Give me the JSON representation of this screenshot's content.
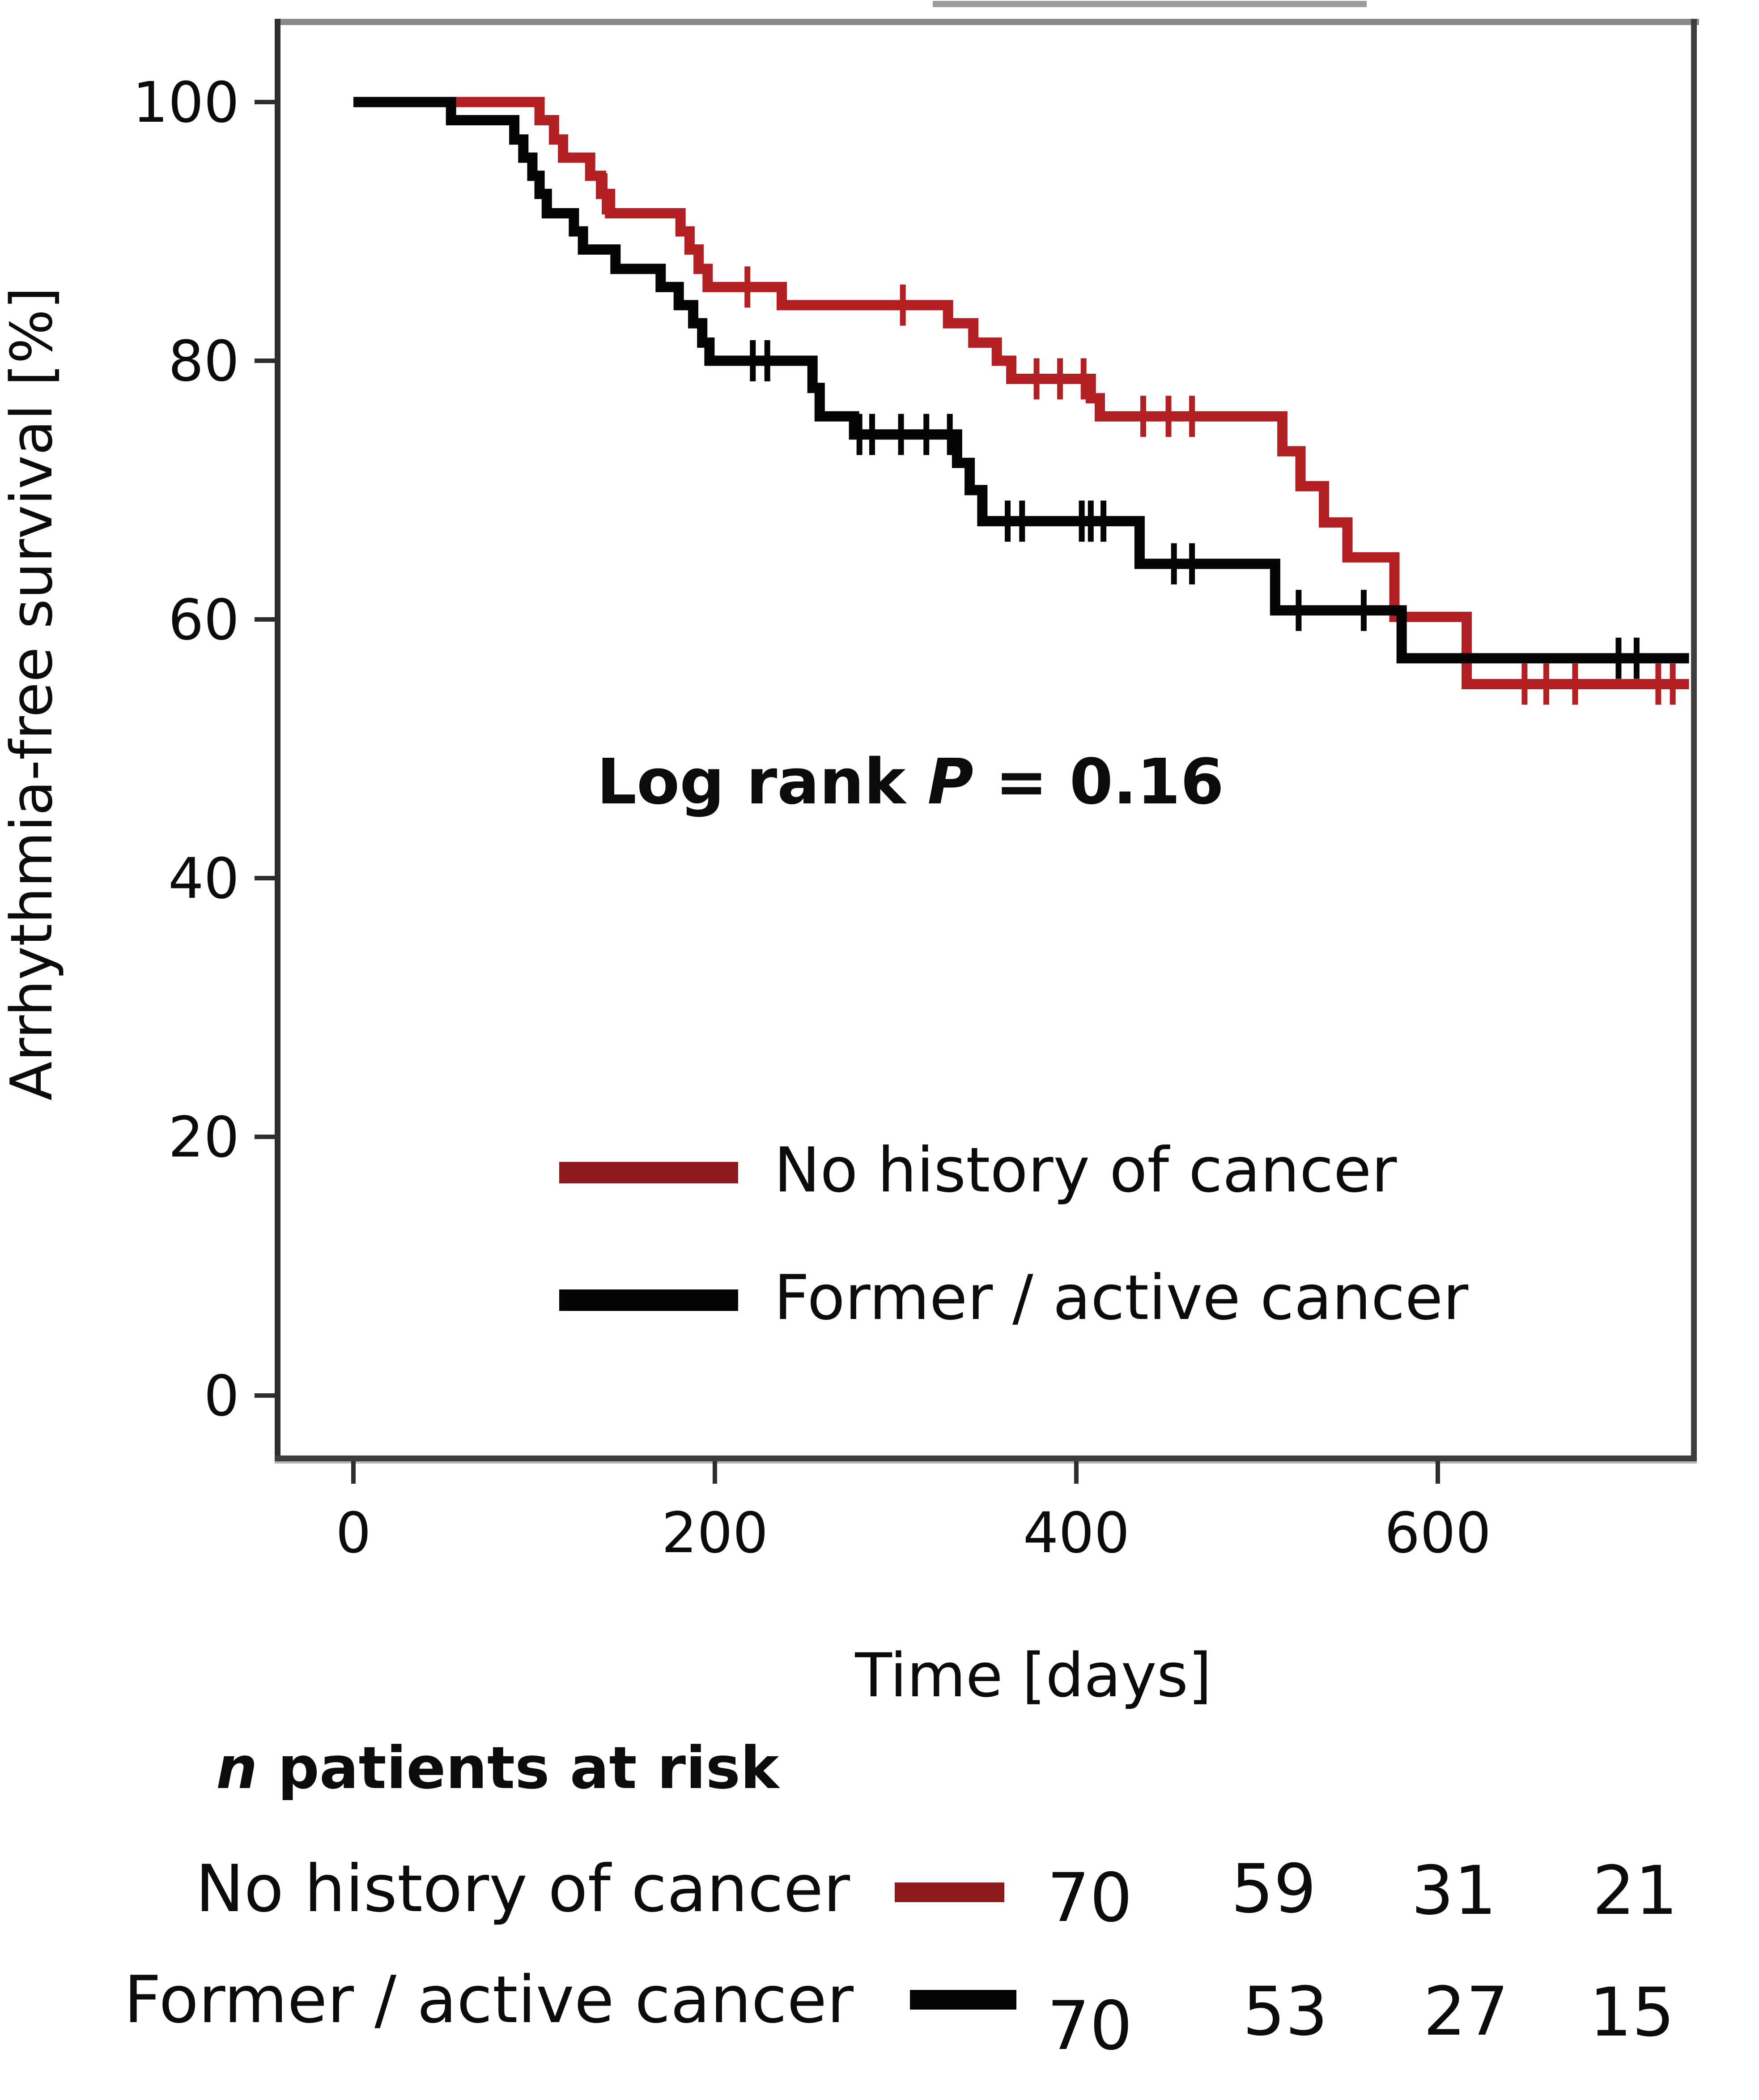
{
  "figure": {
    "background": "#ffffff",
    "top_partial_border_color": "#9c9c9c",
    "frame": {
      "top_color": "#8a8a8a",
      "right_color": "#3f3f3f",
      "left_color": "#2d2d2d",
      "bottom_color": "#3c3c3c",
      "bottom_shadow_color": "#b5b5b5"
    }
  },
  "annotation": {
    "prefix": "Log rank ",
    "p": "P",
    "suffix": " = 0.16"
  },
  "chart_data": {
    "type": "line",
    "subtype": "kaplan-meier-step",
    "title": "",
    "xlabel": "Time [days]",
    "ylabel": "Arrhythmia-free survival [%]",
    "xlim": [
      0,
      739
    ],
    "ylim": [
      -5,
      105
    ],
    "xticks": [
      0,
      200,
      400,
      600
    ],
    "yticks": [
      0,
      20,
      40,
      60,
      80,
      100
    ],
    "grid": false,
    "legend_position": "inside-lower-middle",
    "series": [
      {
        "name": "No history of cancer",
        "color": "#b22024",
        "legend_color": "#8e1a1d",
        "n_start": 70,
        "end_day": 739,
        "steps": [
          [
            0,
            100
          ],
          [
            103,
            98.6
          ],
          [
            111,
            97.1
          ],
          [
            116,
            95.7
          ],
          [
            131,
            94.3
          ],
          [
            137,
            92.9
          ],
          [
            142,
            91.4
          ],
          [
            181,
            90.0
          ],
          [
            186,
            88.6
          ],
          [
            191,
            87.1
          ],
          [
            196,
            85.7
          ],
          [
            237,
            84.3
          ],
          [
            329,
            82.9
          ],
          [
            343,
            81.4
          ],
          [
            356,
            80.0
          ],
          [
            364,
            78.6
          ],
          [
            408,
            77.1
          ],
          [
            413,
            75.7
          ],
          [
            514,
            73.0
          ],
          [
            524,
            70.3
          ],
          [
            537,
            67.5
          ],
          [
            550,
            64.8
          ],
          [
            576,
            60.2
          ],
          [
            616,
            55.0
          ]
        ],
        "censors": [
          [
            139,
            92.9
          ],
          [
            218,
            85.7
          ],
          [
            304,
            84.3
          ],
          [
            378,
            78.6
          ],
          [
            391,
            78.6
          ],
          [
            404,
            78.6
          ],
          [
            437,
            75.7
          ],
          [
            451,
            75.7
          ],
          [
            464,
            75.7
          ],
          [
            648,
            55.0
          ],
          [
            660,
            55.0
          ],
          [
            676,
            55.0
          ],
          [
            722,
            55.0
          ],
          [
            730,
            55.0
          ]
        ]
      },
      {
        "name": "Former / active cancer",
        "color": "#050505",
        "legend_color": "#050505",
        "n_start": 70,
        "end_day": 739,
        "steps": [
          [
            0,
            100
          ],
          [
            54,
            98.6
          ],
          [
            89,
            97.1
          ],
          [
            94,
            95.7
          ],
          [
            99,
            94.3
          ],
          [
            103,
            92.9
          ],
          [
            107,
            91.4
          ],
          [
            122,
            90.0
          ],
          [
            127,
            88.6
          ],
          [
            145,
            87.1
          ],
          [
            170,
            85.7
          ],
          [
            180,
            84.3
          ],
          [
            188,
            82.9
          ],
          [
            193,
            81.4
          ],
          [
            197,
            80.0
          ],
          [
            254,
            77.9
          ],
          [
            258,
            75.7
          ],
          [
            277,
            74.3
          ],
          [
            334,
            72.1
          ],
          [
            341,
            70.0
          ],
          [
            348,
            67.6
          ],
          [
            435,
            64.3
          ],
          [
            510,
            60.7
          ],
          [
            580,
            57.0
          ]
        ],
        "censors": [
          [
            221,
            80.0
          ],
          [
            229,
            80.0
          ],
          [
            280,
            74.3
          ],
          [
            287,
            74.3
          ],
          [
            303,
            74.3
          ],
          [
            317,
            74.3
          ],
          [
            330,
            74.3
          ],
          [
            362,
            67.6
          ],
          [
            370,
            67.6
          ],
          [
            403,
            67.6
          ],
          [
            408,
            67.6
          ],
          [
            415,
            67.6
          ],
          [
            454,
            64.3
          ],
          [
            464,
            64.3
          ],
          [
            523,
            60.7
          ],
          [
            559,
            60.7
          ],
          [
            700,
            57.0
          ],
          [
            710,
            57.0
          ]
        ]
      }
    ]
  },
  "at_risk": {
    "header_italic": "n",
    "header_rest": " patients at risk",
    "times": [
      0,
      200,
      400,
      600
    ],
    "rows": [
      {
        "label": "No history of cancer",
        "color": "#8e1a1d",
        "counts": [
          "70",
          "59",
          "31",
          "21"
        ]
      },
      {
        "label": "Former / active cancer",
        "color": "#050505",
        "counts": [
          "70",
          "53",
          "27",
          "15"
        ]
      }
    ]
  }
}
